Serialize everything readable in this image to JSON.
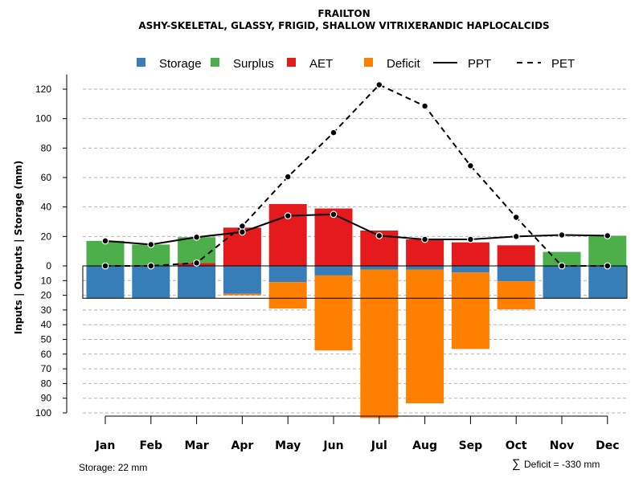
{
  "chart_data": {
    "type": "bar",
    "title": "FRAILTON",
    "subtitle": "ASHY-SKELETAL, GLASSY, FRIGID, SHALLOW VITRIXERANDIC HAPLOCALCIDS",
    "ylabel": "Inputs | Outputs | Storage    (mm)",
    "categories": [
      "Jan",
      "Feb",
      "Mar",
      "Apr",
      "May",
      "Jun",
      "Jul",
      "Aug",
      "Sep",
      "Oct",
      "Nov",
      "Dec"
    ],
    "upper_ticks": [
      "0",
      "20",
      "40",
      "60",
      "80",
      "100",
      "120"
    ],
    "lower_ticks": [
      "10",
      "20",
      "30",
      "40",
      "50",
      "60",
      "70",
      "80",
      "90",
      "100"
    ],
    "ylim_upper": [
      0,
      130
    ],
    "ylim_lower": [
      0,
      100
    ],
    "legend": [
      {
        "name": "Storage",
        "kind": "box",
        "color": "#377EB8"
      },
      {
        "name": "Surplus",
        "kind": "box",
        "color": "#4DAF4A"
      },
      {
        "name": "AET",
        "kind": "box",
        "color": "#E41A1C"
      },
      {
        "name": "Deficit",
        "kind": "box",
        "color": "#FF7F00"
      },
      {
        "name": "PPT",
        "kind": "solid"
      },
      {
        "name": "PET",
        "kind": "dashed"
      }
    ],
    "series": [
      {
        "name": "AET",
        "values": [
          0,
          0,
          2,
          26,
          42,
          39,
          24,
          18,
          16,
          14,
          0,
          0
        ]
      },
      {
        "name": "Surplus",
        "values": [
          17,
          14.5,
          17.5,
          0,
          0,
          0,
          0,
          0,
          0,
          0,
          9.5,
          20.5
        ]
      },
      {
        "name": "Storage",
        "values": [
          22,
          22,
          22,
          19,
          11,
          6.5,
          2.5,
          2.5,
          4.5,
          10.5,
          22,
          22
        ]
      },
      {
        "name": "Deficit",
        "values": [
          0,
          0,
          0,
          1,
          18,
          51,
          101,
          91,
          52,
          19,
          0,
          0
        ]
      },
      {
        "name": "PPT",
        "values": [
          17,
          14.5,
          19.5,
          23,
          34,
          35,
          20.5,
          18,
          18,
          20,
          21,
          20.5
        ]
      },
      {
        "name": "PET",
        "values": [
          0,
          0,
          2,
          27,
          60.5,
          90.5,
          123,
          108.5,
          68,
          33,
          0,
          0
        ]
      }
    ],
    "storage_capacity": 22,
    "footer_left": "Storage: 22 mm",
    "footer_right_symbol": "∑",
    "footer_right": "Deficit = -330 mm"
  }
}
